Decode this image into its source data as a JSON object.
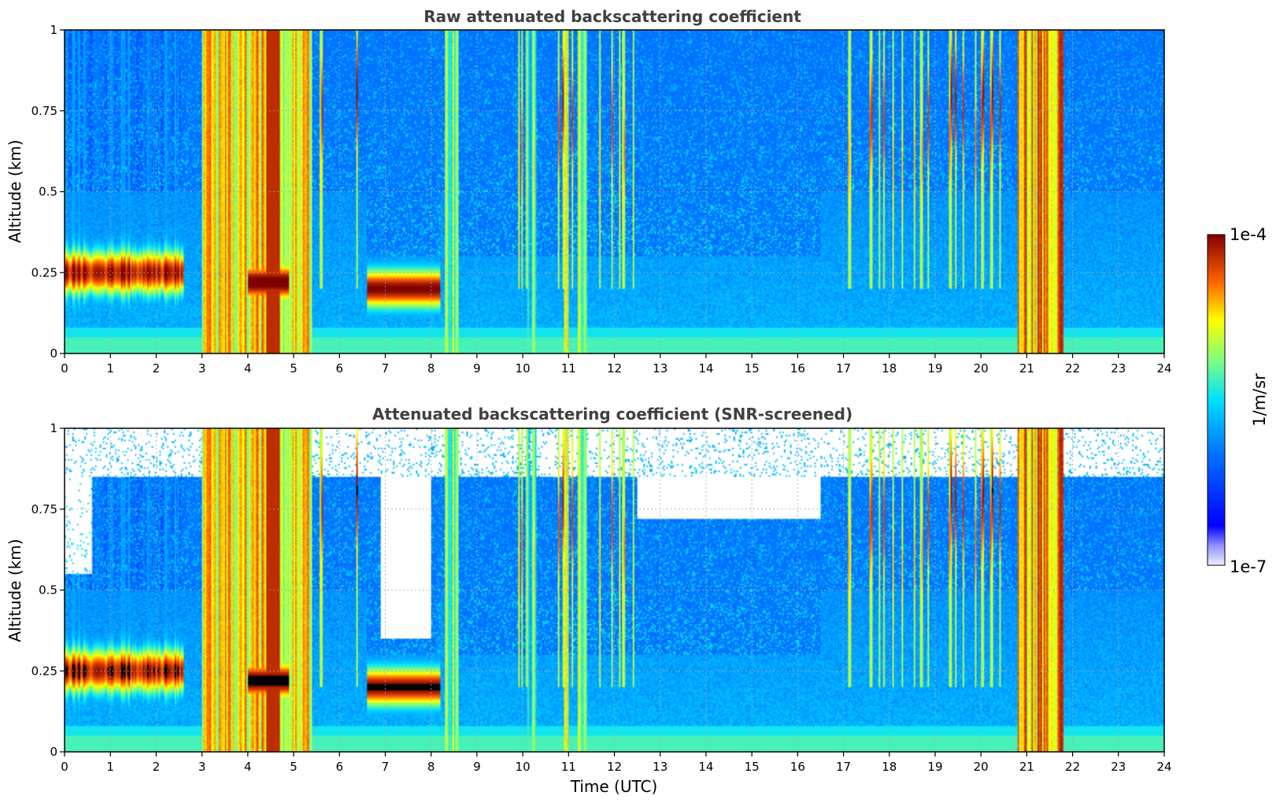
{
  "chart_data": [
    {
      "type": "heatmap",
      "title": "Raw attenuated backscattering coefficient",
      "xlabel": "",
      "ylabel": "Altitude (km)",
      "xlim": [
        0,
        24
      ],
      "ylim": [
        0,
        1
      ],
      "x_ticks": [
        "0",
        "1",
        "2",
        "3",
        "4",
        "5",
        "6",
        "7",
        "8",
        "9",
        "10",
        "11",
        "12",
        "13",
        "14",
        "15",
        "16",
        "17",
        "18",
        "19",
        "20",
        "21",
        "22",
        "23",
        "24"
      ],
      "y_ticks": [
        "0",
        "0.25",
        "0.5",
        "0.75",
        "1"
      ],
      "grid": true,
      "screened": false,
      "color_scale": "jet, log10, 1e-7 to 1e-4 1/m/sr",
      "features": [
        {
          "x_range": [
            0,
            2.6
          ],
          "alt_range": [
            0.18,
            0.35
          ],
          "approx_log10_value": -4.2,
          "description": "boundary layer aerosol/cloud"
        },
        {
          "x_range": [
            3.0,
            5.4
          ],
          "alt_range": [
            0,
            1
          ],
          "approx_log10_value": -4.8,
          "description": "fog/precipitation column"
        },
        {
          "x_range": [
            4.0,
            4.9
          ],
          "alt_range": [
            0.15,
            0.3
          ],
          "approx_log10_value": -4.1,
          "description": "dense low cloud"
        },
        {
          "x_range": [
            6.6,
            8.2
          ],
          "alt_range": [
            0.12,
            0.3
          ],
          "approx_log10_value": -4.1,
          "description": "low cloud layer"
        },
        {
          "x_range": [
            20.8,
            21.8
          ],
          "alt_range": [
            0,
            1
          ],
          "approx_log10_value": -4.6,
          "description": "precipitation column"
        }
      ]
    },
    {
      "type": "heatmap",
      "title": "Attenuated backscattering coefficient (SNR-screened)",
      "xlabel": "Time (UTC)",
      "ylabel": "Altitude (km)",
      "xlim": [
        0,
        24
      ],
      "ylim": [
        0,
        1
      ],
      "x_ticks": [
        "0",
        "1",
        "2",
        "3",
        "4",
        "5",
        "6",
        "7",
        "8",
        "9",
        "10",
        "11",
        "12",
        "13",
        "14",
        "15",
        "16",
        "17",
        "18",
        "19",
        "20",
        "21",
        "22",
        "23",
        "24"
      ],
      "y_ticks": [
        "0",
        "0.25",
        "0.5",
        "0.75",
        "1"
      ],
      "grid": true,
      "screened": true,
      "color_scale": "jet, log10, 1e-7 to 1e-4 1/m/sr; values above 1e-4 shown black; low SNR removed (white)",
      "features": [
        {
          "x_range": [
            0,
            2.6
          ],
          "alt_range": [
            0.18,
            0.35
          ],
          "approx_log10_value": -3.9,
          "description": "saturated boundary layer cloud"
        },
        {
          "x_range": [
            6.6,
            8.2
          ],
          "alt_range": [
            0.12,
            0.28
          ],
          "approx_log10_value": -3.9,
          "description": "saturated low cloud"
        },
        {
          "x_range": [
            6.9,
            8.0
          ],
          "alt_range": [
            0.3,
            1
          ],
          "approx_log10_value": null,
          "description": "screened out (low SNR)"
        }
      ]
    }
  ],
  "colorbar": {
    "max_label": "1e-4",
    "min_label": "1e-7",
    "unit_label": "1/m/sr"
  }
}
